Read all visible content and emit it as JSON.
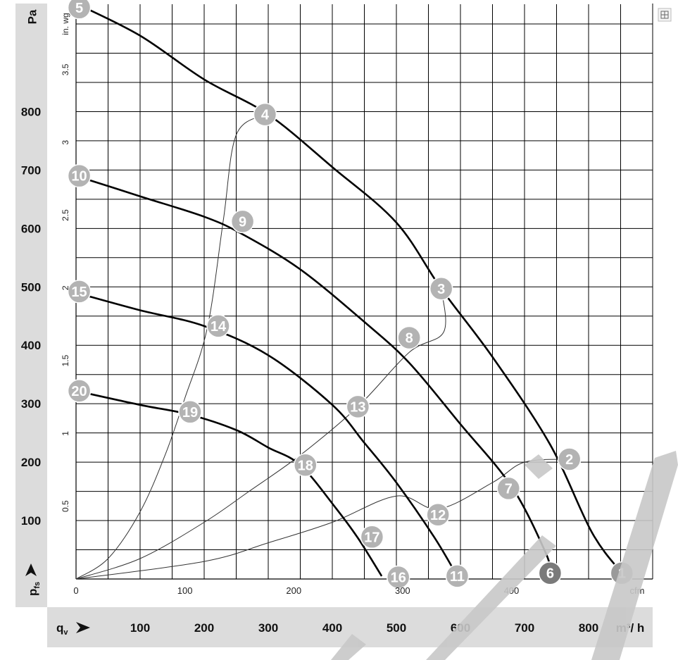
{
  "chart_data": {
    "type": "line",
    "title": "",
    "x_primary": {
      "unit": "m³/h",
      "label": "qV",
      "range": [
        0,
        900
      ],
      "ticks": [
        "100",
        "200",
        "300",
        "400",
        "500",
        "600",
        "700",
        "800"
      ],
      "tick_values": [
        100,
        200,
        300,
        400,
        500,
        600,
        700,
        800
      ]
    },
    "x_secondary": {
      "unit": "cfm",
      "range": [
        0,
        530
      ],
      "ticks": [
        "0",
        "100",
        "200",
        "300",
        "400"
      ],
      "tick_values": [
        0,
        100,
        200,
        300,
        400
      ]
    },
    "y_primary": {
      "unit": "Pa",
      "label": "pfs",
      "range": [
        0,
        985
      ],
      "ticks": [
        "100",
        "200",
        "300",
        "400",
        "500",
        "600",
        "700",
        "800"
      ],
      "tick_values": [
        100,
        200,
        300,
        400,
        500,
        600,
        700,
        800
      ]
    },
    "y_secondary": {
      "unit": "in. wg",
      "range": [
        0,
        3.95
      ],
      "ticks": [
        "0.5",
        "1",
        "1.5",
        "2",
        "2.5",
        "3",
        "3.5"
      ],
      "tick_values": [
        0.5,
        1,
        1.5,
        2,
        2.5,
        3,
        3.5
      ]
    },
    "grid": true,
    "fan_curves": [
      {
        "points": [
          [
            0,
            985
          ],
          [
            100,
            930
          ],
          [
            200,
            855
          ],
          [
            300,
            795
          ],
          [
            400,
            705
          ],
          [
            500,
            610
          ],
          [
            570,
            497
          ],
          [
            650,
            380
          ],
          [
            740,
            230
          ],
          [
            805,
            80
          ],
          [
            852,
            10
          ]
        ]
      },
      {
        "points": [
          [
            0,
            690
          ],
          [
            100,
            655
          ],
          [
            200,
            620
          ],
          [
            260,
            590
          ],
          [
            350,
            530
          ],
          [
            450,
            440
          ],
          [
            520,
            370
          ],
          [
            600,
            265
          ],
          [
            680,
            158
          ],
          [
            733,
            45
          ],
          [
            740,
            10
          ]
        ]
      },
      {
        "points": [
          [
            0,
            490
          ],
          [
            100,
            460
          ],
          [
            200,
            433
          ],
          [
            300,
            383
          ],
          [
            400,
            298
          ],
          [
            450,
            233
          ],
          [
            500,
            165
          ],
          [
            560,
            70
          ],
          [
            595,
            5
          ]
        ]
      },
      {
        "points": [
          [
            0,
            322
          ],
          [
            100,
            298
          ],
          [
            175,
            282
          ],
          [
            250,
            255
          ],
          [
            300,
            225
          ],
          [
            350,
            195
          ],
          [
            405,
            122
          ],
          [
            440,
            70
          ],
          [
            477,
            5
          ]
        ]
      }
    ],
    "system_curves": [
      {
        "points": [
          [
            0,
            0
          ],
          [
            50,
            35
          ],
          [
            100,
            115
          ],
          [
            140,
            215
          ],
          [
            170,
            310
          ],
          [
            205,
            430
          ],
          [
            230,
            615
          ],
          [
            250,
            760
          ],
          [
            295,
            795
          ]
        ]
      },
      {
        "points": [
          [
            0,
            0
          ],
          [
            100,
            35
          ],
          [
            200,
            97
          ],
          [
            270,
            150
          ],
          [
            350,
            212
          ],
          [
            440,
            295
          ],
          [
            520,
            388
          ],
          [
            574,
            423
          ],
          [
            570,
            497
          ]
        ]
      },
      {
        "points": [
          [
            0,
            0
          ],
          [
            200,
            30
          ],
          [
            300,
            62
          ],
          [
            400,
            97
          ],
          [
            500,
            142
          ],
          [
            566,
            120
          ],
          [
            650,
            165
          ],
          [
            700,
            200
          ],
          [
            770,
            205
          ]
        ]
      }
    ],
    "markers": [
      {
        "label": "1",
        "x": 852,
        "y": 10,
        "fill": "#9a9a9a"
      },
      {
        "label": "2",
        "x": 770,
        "y": 205,
        "fill": "#b3b3b3"
      },
      {
        "label": "3",
        "x": 570,
        "y": 497,
        "fill": "#b3b3b3"
      },
      {
        "label": "4",
        "x": 295,
        "y": 795,
        "fill": "#b3b3b3"
      },
      {
        "label": "5",
        "x": 5,
        "y": 978,
        "fill": "#b3b3b3"
      },
      {
        "label": "6",
        "x": 740,
        "y": 10,
        "fill": "#7a7a7a"
      },
      {
        "label": "7",
        "x": 675,
        "y": 155,
        "fill": "#b3b3b3"
      },
      {
        "label": "8",
        "x": 520,
        "y": 413,
        "fill": "#b3b3b3"
      },
      {
        "label": "9",
        "x": 260,
        "y": 612,
        "fill": "#b3b3b3"
      },
      {
        "label": "10",
        "x": 5,
        "y": 690,
        "fill": "#b3b3b3"
      },
      {
        "label": "11",
        "x": 595,
        "y": 5,
        "fill": "#b3b3b3"
      },
      {
        "label": "12",
        "x": 565,
        "y": 110,
        "fill": "#b3b3b3"
      },
      {
        "label": "13",
        "x": 440,
        "y": 295,
        "fill": "#b3b3b3"
      },
      {
        "label": "14",
        "x": 222,
        "y": 433,
        "fill": "#b3b3b3"
      },
      {
        "label": "15",
        "x": 5,
        "y": 492,
        "fill": "#b3b3b3"
      },
      {
        "label": "16",
        "x": 503,
        "y": 3,
        "fill": "#b3b3b3"
      },
      {
        "label": "17",
        "x": 462,
        "y": 72,
        "fill": "#b3b3b3"
      },
      {
        "label": "18",
        "x": 358,
        "y": 195,
        "fill": "#b3b3b3"
      },
      {
        "label": "19",
        "x": 178,
        "y": 286,
        "fill": "#b3b3b3"
      },
      {
        "label": "20",
        "x": 5,
        "y": 322,
        "fill": "#b3b3b3"
      }
    ],
    "colors": {
      "fan_curve": "#000000",
      "system_curve": "#333333",
      "grid": "#000000",
      "margin_band": "#dcdcdc",
      "marker": "#b3b3b3",
      "watermark": "#c8c8c8"
    }
  },
  "axis_labels": {
    "pa_unit": "Pa",
    "inwg_unit": "in. wg",
    "cfm_unit": "cfm",
    "m3h_unit": "m³/ h",
    "pfs_main": "p",
    "pfs_sub": "fs",
    "qv_main": "q",
    "qv_sub": "v"
  },
  "icons": {
    "corner": "grid-icon",
    "arrow": "arrow-icon",
    "watermark": "watermark-stripe"
  }
}
